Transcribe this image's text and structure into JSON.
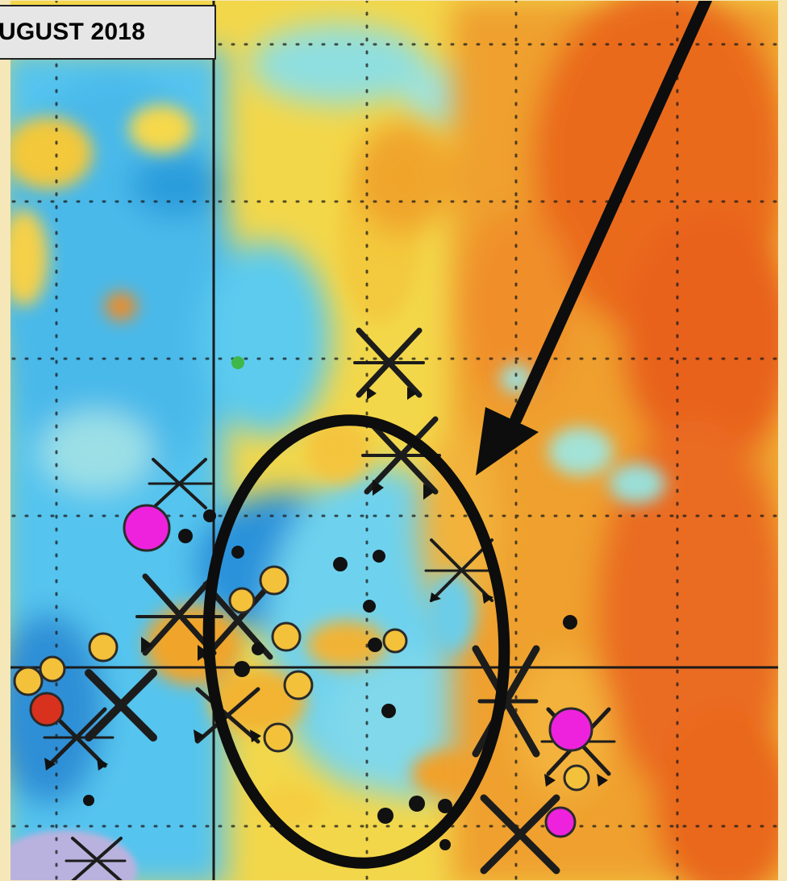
{
  "header": {
    "date_label": "UGUST 2018"
  },
  "colors": {
    "background": "#f5e7b8",
    "cool_deep": "#1f86d4",
    "cool": "#3bb7ec",
    "cool_light": "#7fd9ee",
    "neutral": "#e7f1c0",
    "warm_yellow": "#f6d22c",
    "warm_orange": "#f0a02a",
    "hot": "#ec6a1e",
    "hot_deep": "#e24a14",
    "magenta_marker": "#ee22dd",
    "yellow_marker": "#f3c13a",
    "annotation": "#000000"
  },
  "legend_icons": [
    "x-cross-marker",
    "magenta-circle-marker",
    "orange-circle-marker",
    "black-dot-marker",
    "arrow-icon",
    "ellipse-highlight"
  ]
}
